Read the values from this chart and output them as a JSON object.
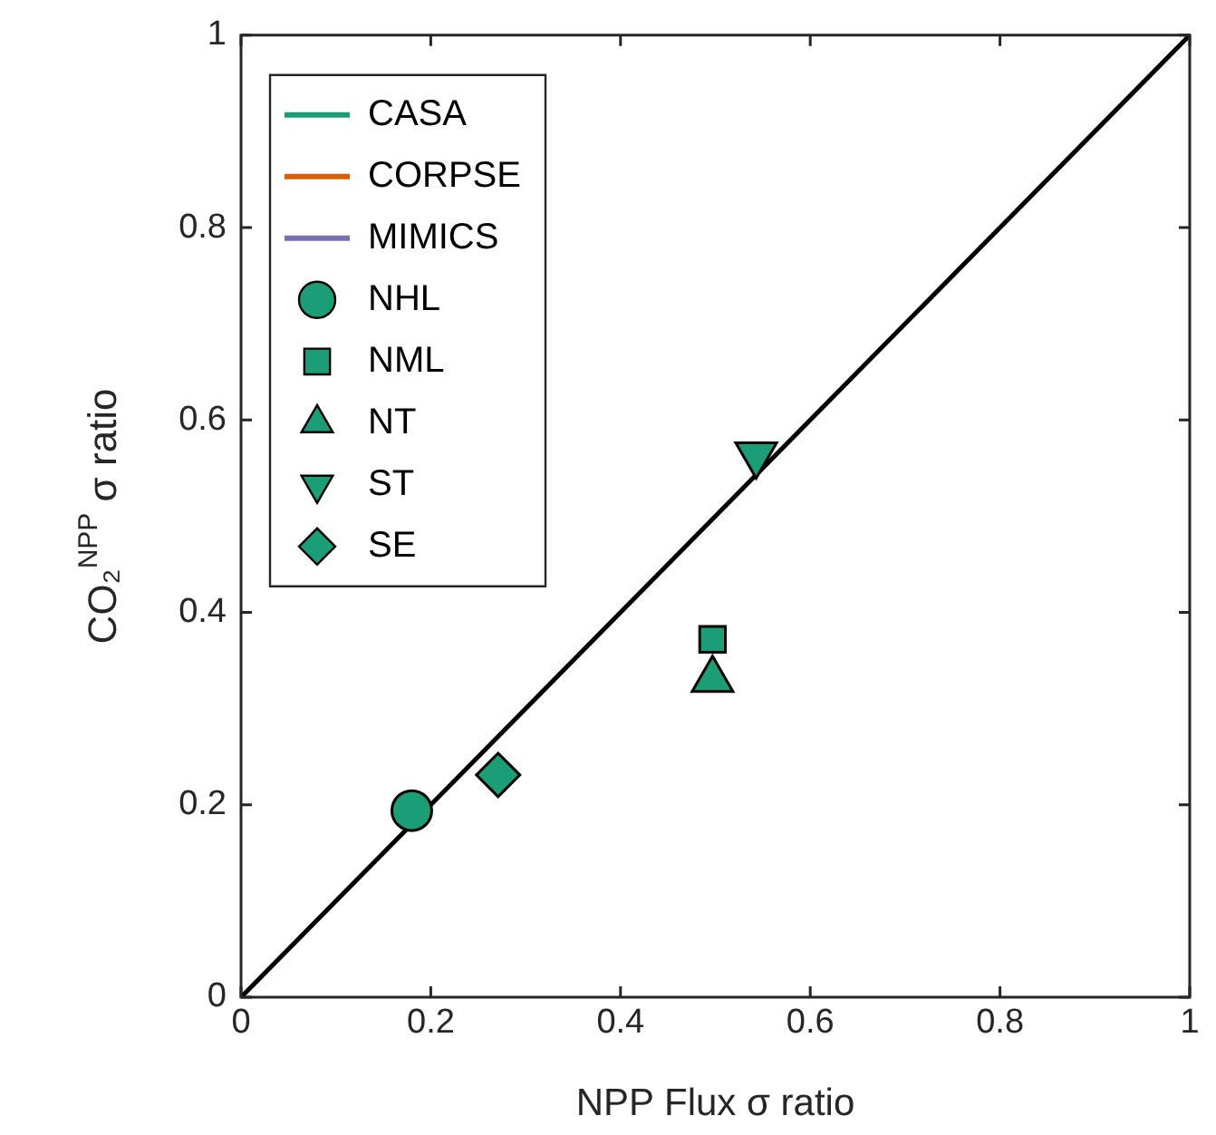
{
  "chart_data": {
    "type": "scatter",
    "xlabel": "NPP Flux σ ratio",
    "ylabel": "CO₂$^{NPP}$ σ ratio",
    "xlim": [
      0,
      1
    ],
    "ylim": [
      0,
      1
    ],
    "xticks": [
      0,
      0.2,
      0.4,
      0.6,
      0.8,
      1
    ],
    "yticks": [
      0,
      0.2,
      0.4,
      0.6,
      0.8,
      1
    ],
    "grid": false,
    "legend": "top left",
    "series": [
      {
        "name": "CASA",
        "type": "line",
        "color": "#1b9e77"
      },
      {
        "name": "CORPSE",
        "type": "line",
        "color": "#d95f02"
      },
      {
        "name": "MIMICS",
        "type": "line",
        "color": "#7570b3"
      },
      {
        "name": "NHL",
        "type": "scatter",
        "marker": "circle",
        "color": "#1b9e77",
        "x": [
          0.18
        ],
        "values": [
          0.194
        ]
      },
      {
        "name": "NML",
        "type": "scatter",
        "marker": "square",
        "color": "#1b9e77",
        "x": [
          0.497
        ],
        "values": [
          0.372
        ]
      },
      {
        "name": "NT",
        "type": "scatter",
        "marker": "triangle",
        "color": "#1b9e77",
        "x": [
          0.497
        ],
        "values": [
          0.33
        ]
      },
      {
        "name": "ST",
        "type": "scatter",
        "marker": "triangle-down",
        "color": "#1b9e77",
        "x": [
          0.543
        ],
        "values": [
          0.564
        ]
      },
      {
        "name": "SE",
        "type": "scatter",
        "marker": "diamond",
        "color": "#1b9e77",
        "x": [
          0.271
        ],
        "values": [
          0.231
        ]
      },
      {
        "type": "line",
        "color": "#000000",
        "x": [
          0,
          1
        ],
        "values": [
          0,
          1
        ]
      }
    ]
  }
}
